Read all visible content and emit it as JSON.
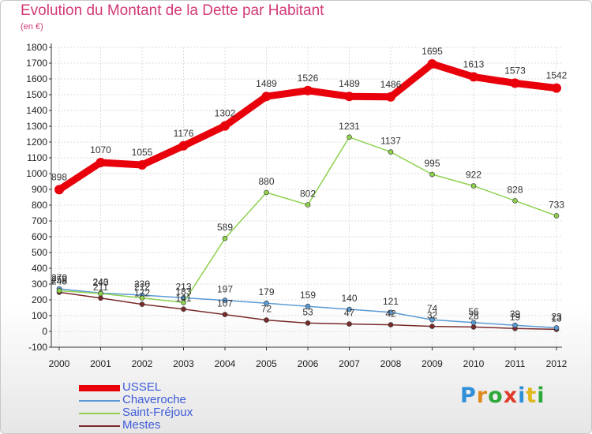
{
  "title": "Evolution du Montant de la Dette par Habitant",
  "subtitle": "(en €)",
  "logo": {
    "text": "Proxiti",
    "colors": [
      "#2f8fd8",
      "#e08a1e",
      "#2fa83a",
      "#e03a2a",
      "#2f8fd8",
      "#e0b81e",
      "#2fa83a"
    ]
  },
  "chart_data": {
    "type": "line",
    "x": [
      "2000",
      "2001",
      "2002",
      "2003",
      "2004",
      "2005",
      "2006",
      "2007",
      "2008",
      "2009",
      "2010",
      "2011",
      "2012"
    ],
    "ylim": [
      -100,
      1800
    ],
    "yticks": [
      -100,
      0,
      100,
      200,
      300,
      400,
      500,
      600,
      700,
      800,
      900,
      1000,
      1100,
      1200,
      1300,
      1400,
      1500,
      1600,
      1700,
      1800
    ],
    "grid": true,
    "legend_position": "bottom-left",
    "series": [
      {
        "name": "USSEL",
        "color": "#e8000b",
        "values": [
          898,
          1070,
          1055,
          1176,
          1302,
          1489,
          1526,
          1489,
          1486,
          1695,
          1613,
          1573,
          1542
        ],
        "labels": [
          898,
          1070,
          1055,
          1176,
          1302,
          1489,
          1526,
          1489,
          1486,
          1695,
          1613,
          1573,
          1542
        ]
      },
      {
        "name": "Chaveroche",
        "color": "#5b9bd5",
        "values": [
          270,
          243,
          230,
          213,
          197,
          179,
          159,
          140,
          121,
          74,
          56,
          39,
          23
        ],
        "labels": [
          270,
          243,
          230,
          213,
          197,
          179,
          159,
          140,
          121,
          74,
          56,
          39,
          23
        ]
      },
      {
        "name": "Saint-Fréjoux",
        "color": "#8fd14f",
        "values": [
          258,
          240,
          212,
          183,
          589,
          880,
          802,
          1231,
          1137,
          995,
          922,
          828,
          733
        ],
        "labels": [
          258,
          240,
          212,
          183,
          589,
          880,
          802,
          1231,
          1137,
          995,
          922,
          828,
          733
        ]
      },
      {
        "name": "Mestes",
        "color": "#7a2a2a",
        "values": [
          248,
          211,
          172,
          141,
          107,
          72,
          53,
          47,
          42,
          32,
          28,
          19,
          13
        ],
        "labels": [
          248,
          211,
          172,
          141,
          107,
          72,
          53,
          47,
          42,
          32,
          28,
          19,
          13
        ]
      }
    ]
  }
}
